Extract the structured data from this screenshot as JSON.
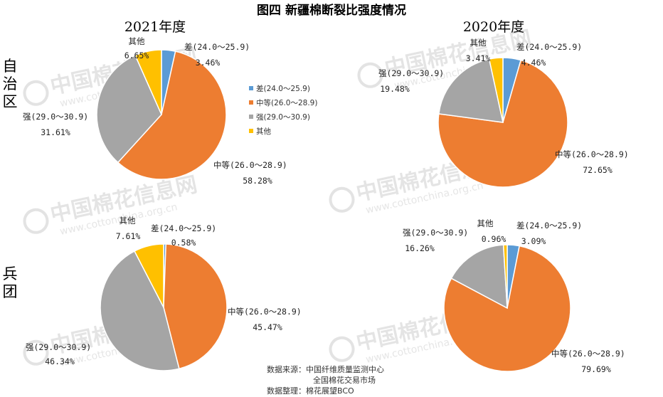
{
  "title": "图四  新疆棉断裂比强度情况",
  "column_titles": [
    "2021年度",
    "2020年度"
  ],
  "row_labels": [
    "自\n治\n区",
    "兵\n团"
  ],
  "legend": {
    "position": "between-top-charts",
    "items": [
      {
        "label": "差(24.0～25.9)",
        "color": "#5B9BD5"
      },
      {
        "label": "中等(26.0～28.9)",
        "color": "#ED7D31"
      },
      {
        "label": "强(29.0～30.9)",
        "color": "#A5A5A5"
      },
      {
        "label": "其他",
        "color": "#FFC000"
      }
    ]
  },
  "source": [
    "数据来源：中国纤维质量监测中心",
    "全国棉花交易市场",
    "数据整理：棉花展望BCO"
  ],
  "watermark": {
    "text": "中国棉花信息网",
    "url": "www.cottonchina.org.cn"
  },
  "chart_data": [
    {
      "type": "pie",
      "row": "自治区",
      "year": "2021年度",
      "slices": [
        {
          "name": "差(24.0～25.9)",
          "value": 3.46,
          "label": "3.46%",
          "color": "#5B9BD5"
        },
        {
          "name": "中等(26.0～28.9)",
          "value": 58.28,
          "label": "58.28%",
          "color": "#ED7D31"
        },
        {
          "name": "强(29.0～30.9)",
          "value": 31.61,
          "label": "31.61%",
          "color": "#A5A5A5"
        },
        {
          "name": "其他",
          "value": 6.65,
          "label": "6.65%",
          "color": "#FFC000"
        }
      ]
    },
    {
      "type": "pie",
      "row": "自治区",
      "year": "2020年度",
      "slices": [
        {
          "name": "差(24.0～25.9)",
          "value": 4.46,
          "label": "4.46%",
          "color": "#5B9BD5"
        },
        {
          "name": "中等(26.0～28.9)",
          "value": 72.65,
          "label": "72.65%",
          "color": "#ED7D31"
        },
        {
          "name": "强(29.0～30.9)",
          "value": 19.48,
          "label": "19.48%",
          "color": "#A5A5A5"
        },
        {
          "name": "其他",
          "value": 3.41,
          "label": "3.41%",
          "color": "#FFC000"
        }
      ]
    },
    {
      "type": "pie",
      "row": "兵团",
      "year": "2021年度",
      "slices": [
        {
          "name": "差(24.0～25.9)",
          "value": 0.58,
          "label": "0.58%",
          "color": "#5B9BD5"
        },
        {
          "name": "中等(26.0～28.9)",
          "value": 45.47,
          "label": "45.47%",
          "color": "#ED7D31"
        },
        {
          "name": "强(29.0～30.9)",
          "value": 46.34,
          "label": "46.34%",
          "color": "#A5A5A5"
        },
        {
          "name": "其他",
          "value": 7.61,
          "label": "7.61%",
          "color": "#FFC000"
        }
      ]
    },
    {
      "type": "pie",
      "row": "兵团",
      "year": "2020年度",
      "slices": [
        {
          "name": "差(24.0～25.9)",
          "value": 3.09,
          "label": "3.09%",
          "color": "#5B9BD5"
        },
        {
          "name": "中等(26.0～28.9)",
          "value": 79.69,
          "label": "79.69%",
          "color": "#ED7D31"
        },
        {
          "name": "强(29.0～30.9)",
          "value": 16.26,
          "label": "16.26%",
          "color": "#A5A5A5"
        },
        {
          "name": "其他",
          "value": 0.96,
          "label": "0.96%",
          "color": "#FFC000"
        }
      ]
    }
  ]
}
